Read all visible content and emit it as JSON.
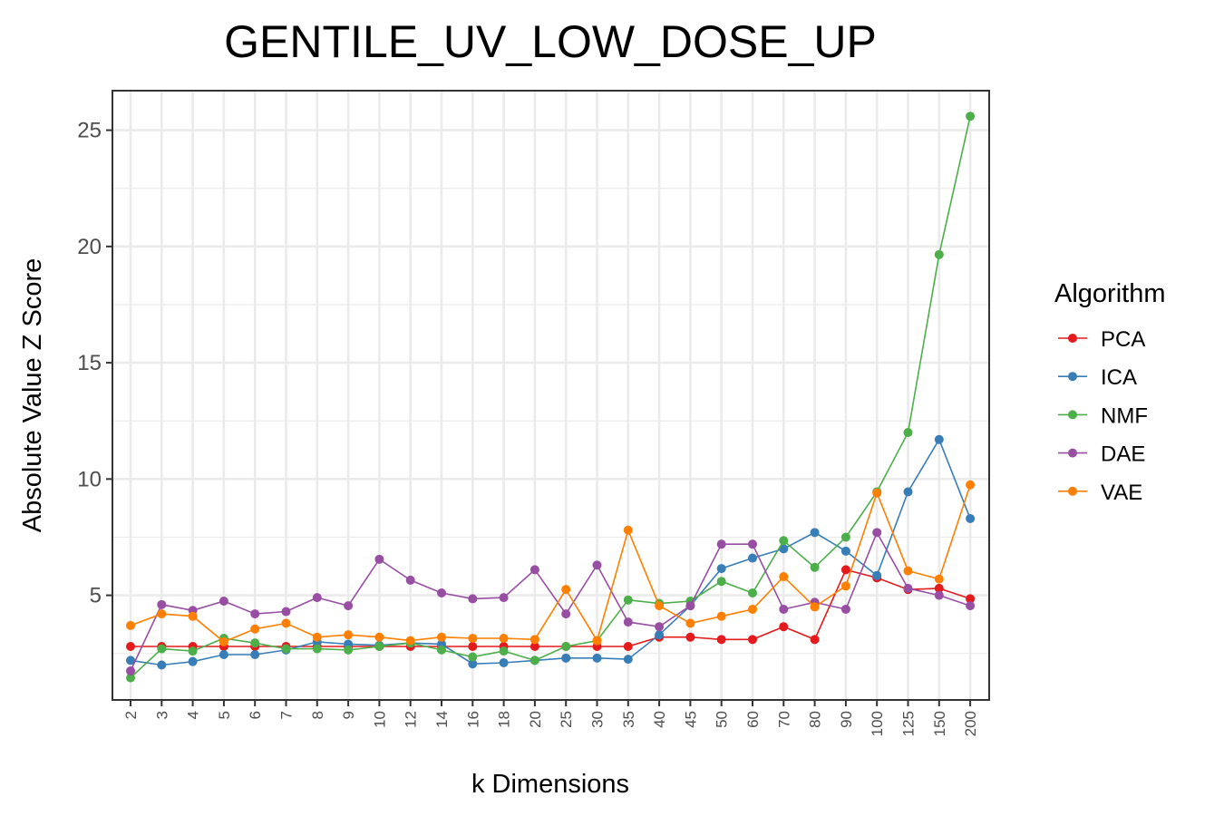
{
  "chart_data": {
    "type": "line",
    "title": "GENTILE_UV_LOW_DOSE_UP",
    "xlabel": "k Dimensions",
    "ylabel": "Absolute Value Z Score",
    "legend_title": "Algorithm",
    "legend_position": "right",
    "grid": true,
    "ylim": [
      0.5,
      26.7
    ],
    "yticks": [
      5,
      10,
      15,
      20,
      25
    ],
    "categories": [
      "2",
      "3",
      "4",
      "5",
      "6",
      "7",
      "8",
      "9",
      "10",
      "12",
      "14",
      "16",
      "18",
      "20",
      "25",
      "30",
      "35",
      "40",
      "45",
      "50",
      "60",
      "70",
      "80",
      "90",
      "100",
      "125",
      "150",
      "200"
    ],
    "series": [
      {
        "name": "PCA",
        "color": "#E41A1C",
        "values": [
          2.8,
          2.8,
          2.8,
          2.8,
          2.8,
          2.8,
          2.8,
          2.8,
          2.8,
          2.8,
          2.8,
          2.8,
          2.8,
          2.8,
          2.8,
          2.8,
          2.8,
          3.2,
          3.2,
          3.1,
          3.1,
          3.65,
          3.1,
          6.1,
          5.75,
          5.25,
          5.3,
          4.85
        ]
      },
      {
        "name": "ICA",
        "color": "#377EB8",
        "values": [
          2.2,
          2.0,
          2.15,
          2.45,
          2.45,
          2.65,
          3.0,
          2.9,
          2.85,
          2.95,
          2.9,
          2.05,
          2.1,
          2.2,
          2.3,
          2.3,
          2.25,
          3.3,
          4.55,
          6.15,
          6.6,
          7.0,
          7.7,
          6.9,
          5.85,
          9.45,
          11.7,
          8.3
        ]
      },
      {
        "name": "NMF",
        "color": "#4DAF4A",
        "values": [
          1.45,
          2.7,
          2.6,
          3.15,
          2.95,
          2.7,
          2.7,
          2.65,
          2.8,
          2.95,
          2.65,
          2.35,
          2.6,
          2.2,
          2.8,
          3.05,
          4.8,
          4.65,
          4.75,
          5.6,
          5.1,
          7.35,
          6.2,
          7.5,
          9.45,
          12.0,
          19.65,
          25.6
        ]
      },
      {
        "name": "DAE",
        "color": "#984EA3",
        "values": [
          1.75,
          4.6,
          4.35,
          4.75,
          4.2,
          4.3,
          4.9,
          4.55,
          6.55,
          5.65,
          5.1,
          4.85,
          4.9,
          6.1,
          4.2,
          6.3,
          3.85,
          3.65,
          4.55,
          7.2,
          7.2,
          4.4,
          4.7,
          4.4,
          7.7,
          5.3,
          5.0,
          4.55
        ]
      },
      {
        "name": "VAE",
        "color": "#FF7F00",
        "values": [
          3.7,
          4.2,
          4.1,
          3.0,
          3.55,
          3.8,
          3.2,
          3.3,
          3.2,
          3.05,
          3.2,
          3.15,
          3.15,
          3.1,
          5.25,
          3.05,
          7.8,
          4.55,
          3.8,
          4.1,
          4.4,
          5.8,
          4.5,
          5.4,
          9.4,
          6.05,
          5.7,
          9.75
        ]
      }
    ]
  }
}
